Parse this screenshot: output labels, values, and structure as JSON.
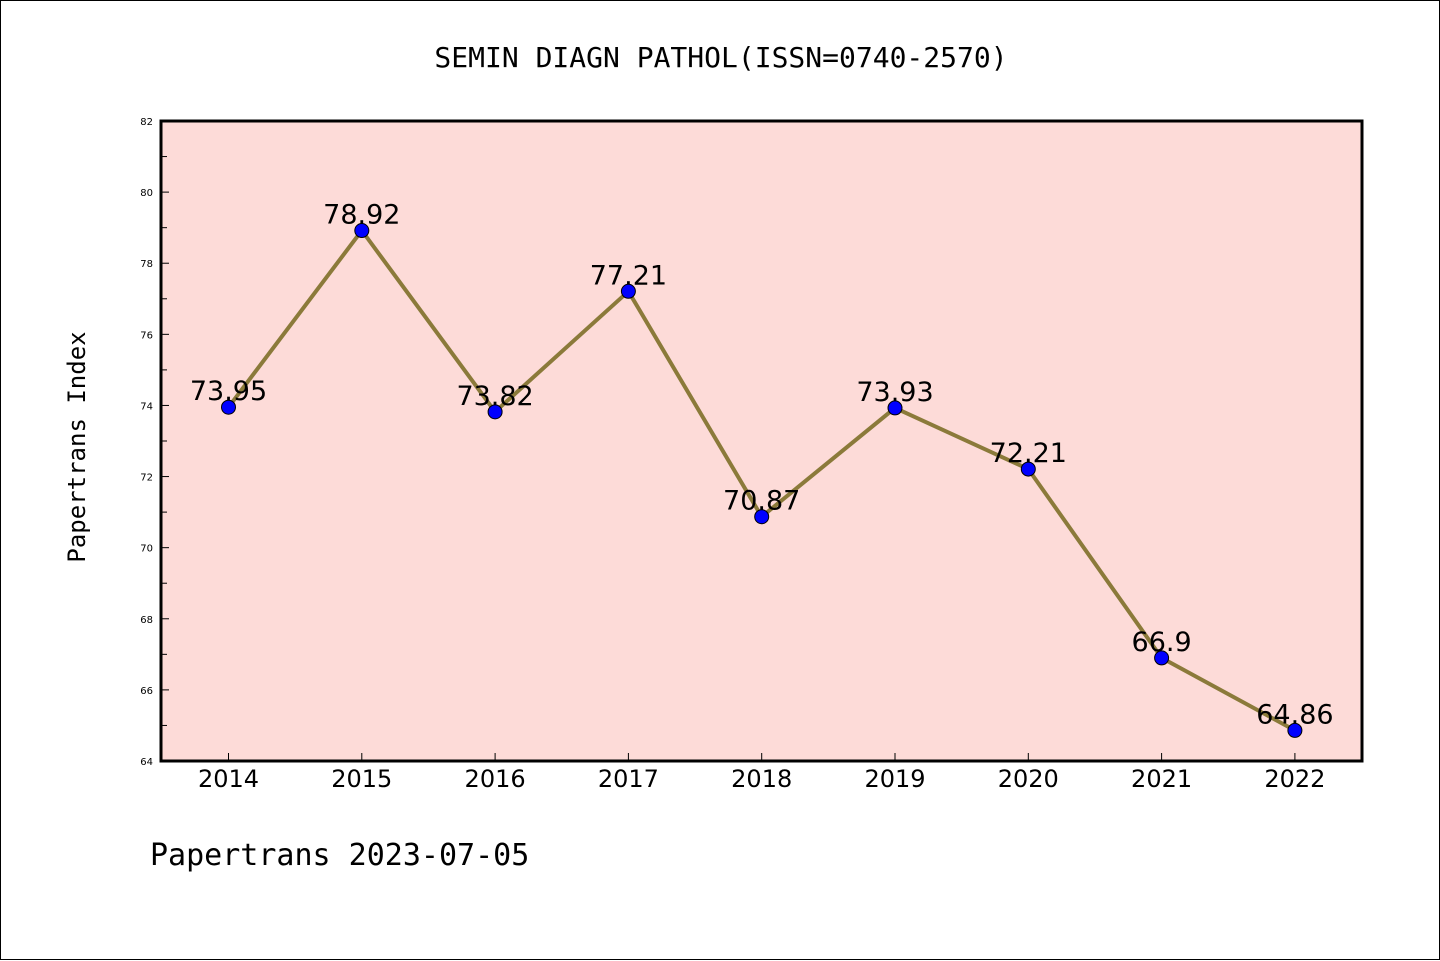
{
  "chart_data": {
    "type": "line",
    "title": "SEMIN DIAGN PATHOL(ISSN=0740-2570)",
    "ylabel": "Papertrans Index",
    "xlabel": "",
    "categories": [
      "2014",
      "2015",
      "2016",
      "2017",
      "2018",
      "2019",
      "2020",
      "2021",
      "2022"
    ],
    "values": [
      73.95,
      78.92,
      73.82,
      77.21,
      70.87,
      73.93,
      72.21,
      66.9,
      64.86
    ],
    "value_labels": [
      "73.95",
      "78.92",
      "73.82",
      "77.21",
      "70.87",
      "73.93",
      "72.21",
      "66.9",
      "64.86"
    ],
    "ylim": [
      64,
      82
    ],
    "yticks": [
      64,
      66,
      68,
      70,
      72,
      74,
      76,
      78,
      80,
      82
    ],
    "grid": false,
    "colors": {
      "plot_background": "#fddbd8",
      "line": "#8b7a3a",
      "marker": "#0000ff"
    }
  },
  "footer": "Papertrans 2023-07-05"
}
